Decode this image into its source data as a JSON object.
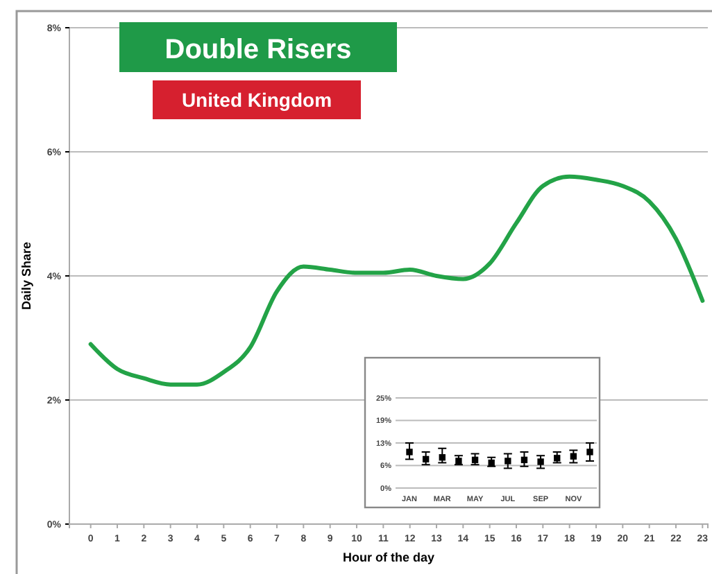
{
  "chart_data": [
    {
      "type": "line",
      "title": "Double Risers",
      "subtitle": "United Kingdom",
      "xlabel": "Hour of the day",
      "ylabel": "Daily Share",
      "x": [
        0,
        1,
        2,
        3,
        4,
        5,
        6,
        7,
        8,
        9,
        10,
        11,
        12,
        13,
        14,
        15,
        16,
        17,
        18,
        19,
        20,
        21,
        22,
        23
      ],
      "series": [
        {
          "color": "#23a347",
          "values": [
            2.9,
            2.5,
            2.35,
            2.25,
            2.25,
            2.45,
            2.85,
            3.75,
            4.15,
            4.1,
            4.05,
            4.05,
            4.1,
            4.0,
            3.95,
            4.2,
            4.85,
            5.45,
            5.6,
            5.55,
            5.45,
            5.2,
            4.6,
            3.6
          ]
        }
      ],
      "xlim": [
        -0.8,
        23.2
      ],
      "xticks": [
        0,
        1,
        2,
        3,
        4,
        5,
        6,
        7,
        8,
        9,
        10,
        11,
        12,
        13,
        14,
        15,
        16,
        17,
        18,
        19,
        20,
        21,
        22,
        23
      ],
      "ylim": [
        0,
        8
      ],
      "yticks": [
        {
          "value": 0,
          "label": "0%"
        },
        {
          "value": 2,
          "label": "2%"
        },
        {
          "value": 4,
          "label": "4%"
        },
        {
          "value": 6,
          "label": "6%"
        },
        {
          "value": 8,
          "label": "8%"
        }
      ],
      "grid": "y",
      "marker": "none",
      "line_style": "solid"
    },
    {
      "type": "scatter",
      "categories": [
        "JAN",
        null,
        "MAR",
        null,
        "MAY",
        null,
        "JUL",
        null,
        "SEP",
        null,
        "NOV",
        null
      ],
      "series": [
        {
          "color": "#000000",
          "values": [
            10,
            8,
            8.5,
            7.5,
            7.8,
            7,
            7.5,
            7.8,
            7.3,
            8.3,
            8.8,
            10
          ],
          "errors": [
            [
              8,
              12.5
            ],
            [
              6.5,
              10
            ],
            [
              7,
              11
            ],
            [
              6.5,
              9
            ],
            [
              6.5,
              9.5
            ],
            [
              6,
              8.5
            ],
            [
              5.5,
              9.5
            ],
            [
              6,
              10
            ],
            [
              5.5,
              9
            ],
            [
              7,
              10
            ],
            [
              7,
              10.5
            ],
            [
              7.5,
              12.5
            ]
          ]
        }
      ],
      "ylim": [
        0,
        25
      ],
      "yticks": [
        {
          "value": 0,
          "label": "0%"
        },
        {
          "value": 6.25,
          "label": "6%"
        },
        {
          "value": 12.5,
          "label": "13%"
        },
        {
          "value": 18.75,
          "label": "19%"
        },
        {
          "value": 25,
          "label": "25%"
        }
      ],
      "grid": "y",
      "marker": "square"
    }
  ]
}
